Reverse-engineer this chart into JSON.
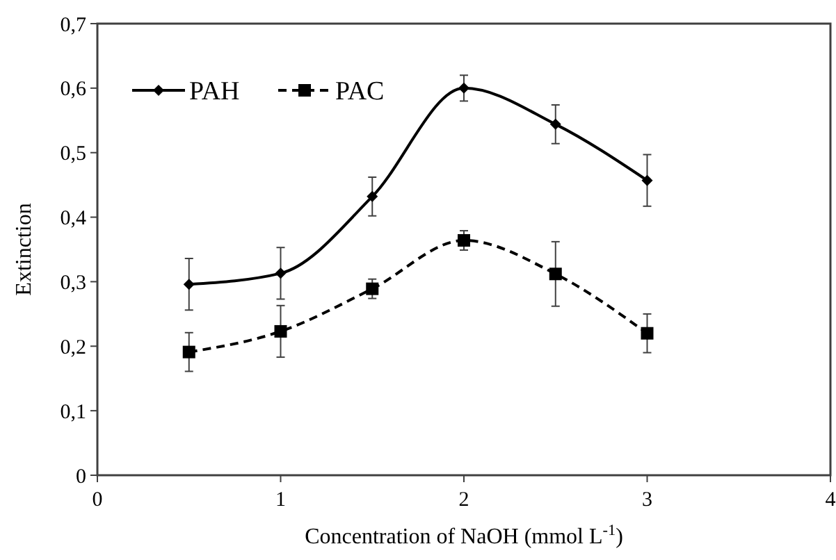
{
  "chart_data": {
    "type": "line",
    "xlabel": "Concentration of  NaOH (mmol L$^{-1}$)",
    "ylabel": "Extinction",
    "x": [
      0.5,
      1,
      1.5,
      2,
      2.5,
      3
    ],
    "xlim": [
      0,
      4
    ],
    "xticks": [
      0,
      1,
      2,
      3,
      4
    ],
    "ylim": [
      0,
      0.7
    ],
    "yticks": [
      0,
      {
        "value": 0.1,
        "label": "0,1"
      },
      {
        "value": 0.2,
        "label": "0,2"
      },
      {
        "value": 0.3,
        "label": "0,3"
      },
      {
        "value": 0.4,
        "label": "0,4"
      },
      {
        "value": 0.5,
        "label": "0,5"
      },
      {
        "value": 0.6,
        "label": "0,6"
      },
      {
        "value": 0.7,
        "label": "0,7"
      }
    ],
    "grid": false,
    "legend": "top left",
    "series": [
      {
        "name": "PAH",
        "color": "#000000",
        "marker": "diamond",
        "line_style": "solid",
        "values": [
          0.296,
          0.313,
          0.432,
          0.6,
          0.544,
          0.457
        ],
        "errors": [
          0.04,
          0.04,
          0.03,
          0.02,
          0.03,
          0.04
        ]
      },
      {
        "name": "PAC",
        "color": "#000000",
        "marker": "square",
        "line_style": "dashed",
        "values": [
          0.191,
          0.223,
          0.289,
          0.364,
          0.312,
          0.22
        ],
        "errors": [
          0.03,
          0.04,
          0.015,
          0.015,
          0.05,
          0.03
        ]
      }
    ]
  }
}
